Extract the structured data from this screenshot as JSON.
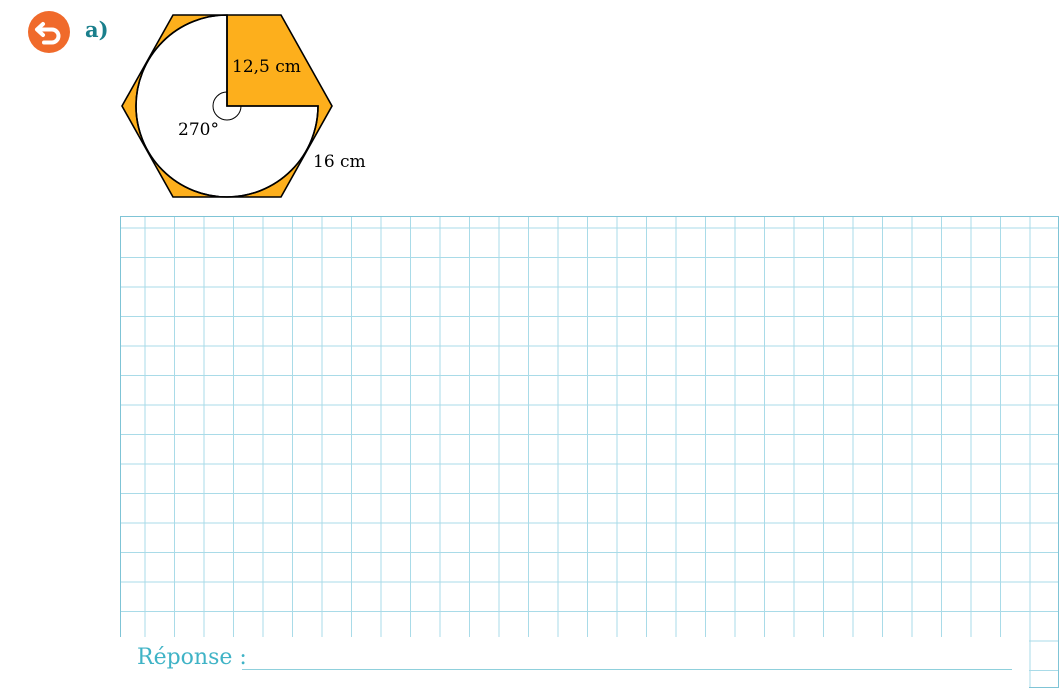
{
  "exercise": {
    "part_label": "a)",
    "back_icon": "undo-arrow-icon",
    "accent_color": "#f06a2b",
    "label_color": "#1a7f8c"
  },
  "figure": {
    "fill_color": "#fdaf1c",
    "angle_label": "270°",
    "radius_label": "12,5 cm",
    "side_label": "16 cm"
  },
  "answer": {
    "label": "Réponse :",
    "color": "#3fb3c6",
    "grid_color": "#a9dbe8"
  }
}
